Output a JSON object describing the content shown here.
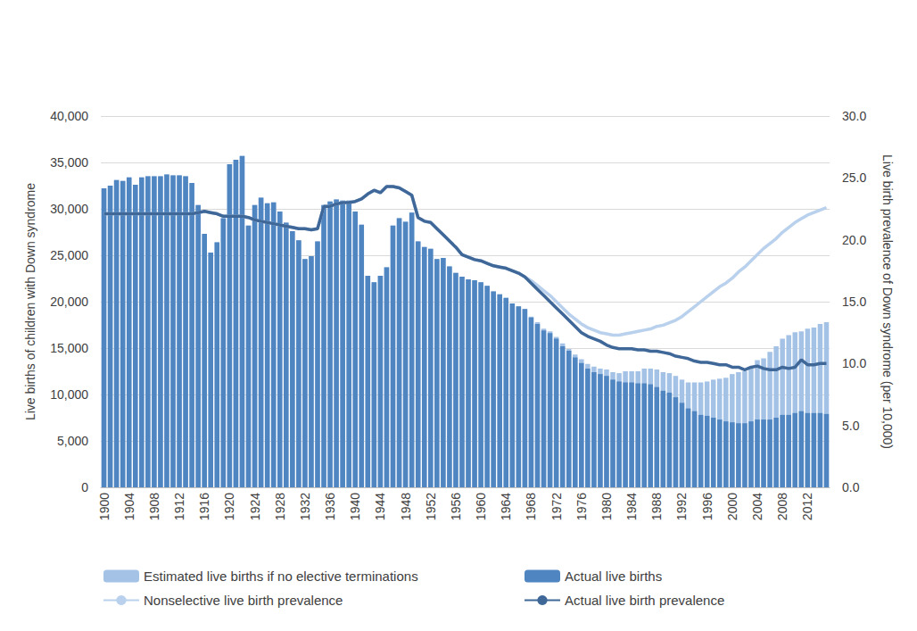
{
  "chart_data": {
    "type": "bar",
    "y_label": "Live births of children with Down syndrome",
    "y2_label": "Live birth prevalence of Down syndrome (per 10,000)",
    "categories": [
      "1900",
      null,
      null,
      null,
      "1904",
      null,
      null,
      null,
      "1908",
      null,
      null,
      null,
      "1912",
      null,
      null,
      null,
      "1916",
      null,
      null,
      null,
      "1920",
      null,
      null,
      null,
      "1924",
      null,
      null,
      null,
      "1928",
      null,
      null,
      null,
      "1932",
      null,
      null,
      null,
      "1936",
      null,
      null,
      null,
      "1940",
      null,
      null,
      null,
      "1944",
      null,
      null,
      null,
      "1948",
      null,
      null,
      null,
      "1952",
      null,
      null,
      null,
      "1956",
      null,
      null,
      null,
      "1960",
      null,
      null,
      null,
      "1964",
      null,
      null,
      null,
      "1968",
      null,
      null,
      null,
      "1972",
      null,
      null,
      null,
      "1976",
      null,
      null,
      null,
      "1980",
      null,
      null,
      null,
      "1984",
      null,
      null,
      null,
      "1988",
      null,
      null,
      null,
      "1992",
      null,
      null,
      null,
      "1996",
      null,
      null,
      null,
      "2000",
      null,
      null,
      null,
      "2004",
      null,
      null,
      null,
      "2008",
      null,
      null,
      null,
      "2012",
      null,
      null,
      null
    ],
    "ylim": [
      0,
      40000
    ],
    "yticks": [
      0,
      {
        "value": 5000,
        "label": "5,000"
      },
      {
        "value": 10000,
        "label": "10,000"
      },
      {
        "value": 15000,
        "label": "15,000"
      },
      {
        "value": 20000,
        "label": "20,000"
      },
      {
        "value": 25000,
        "label": "25,000"
      },
      {
        "value": 30000,
        "label": "30,000"
      },
      {
        "value": 35000,
        "label": "35,000"
      },
      {
        "value": 40000,
        "label": "40,000"
      }
    ],
    "y2lim": [
      0,
      30
    ],
    "y2ticks": [
      {
        "value": 0,
        "label": "0.0"
      },
      {
        "value": 5,
        "label": "5.0"
      },
      {
        "value": 10,
        "label": "10.0"
      },
      {
        "value": 15,
        "label": "15.0"
      },
      {
        "value": 20,
        "label": "20.0"
      },
      {
        "value": 25,
        "label": "25.0"
      },
      {
        "value": 30,
        "label": "30.0"
      }
    ],
    "grid": true,
    "legend": "bottom",
    "stacked": false,
    "series": [
      {
        "name": "Estimated live births if no elective terminations",
        "type": "bar",
        "color": "#a4c2e6",
        "values": [
          32200,
          32500,
          33100,
          33000,
          33400,
          32600,
          33400,
          33500,
          33500,
          33500,
          33700,
          33600,
          33600,
          33500,
          32800,
          30400,
          27300,
          25300,
          26400,
          29000,
          34800,
          35300,
          35700,
          28200,
          30400,
          31200,
          30600,
          30700,
          29700,
          28500,
          27600,
          26600,
          24600,
          24900,
          26500,
          30400,
          30800,
          31000,
          30900,
          30900,
          29700,
          28300,
          22800,
          22100,
          22800,
          23700,
          28200,
          29000,
          28600,
          29600,
          26500,
          25900,
          25700,
          24600,
          24700,
          23800,
          23100,
          22700,
          22400,
          22300,
          22100,
          21700,
          21100,
          20800,
          20400,
          19800,
          19500,
          19200,
          18400,
          17800,
          17100,
          16800,
          16200,
          15500,
          14900,
          14300,
          13800,
          13300,
          13000,
          12800,
          12700,
          12400,
          12300,
          12500,
          12500,
          12500,
          12800,
          12800,
          12700,
          12400,
          12300,
          12000,
          11600,
          11300,
          11300,
          11300,
          11400,
          11600,
          11700,
          11800,
          12200,
          12400,
          12500,
          13000,
          13700,
          13900,
          14600,
          15200,
          16000,
          16400,
          16700,
          16800,
          17100,
          17200,
          17600,
          17800
        ]
      },
      {
        "name": "Actual live births",
        "type": "bar",
        "color": "#4f85c1",
        "values": [
          32200,
          32500,
          33100,
          33000,
          33400,
          32600,
          33400,
          33500,
          33500,
          33500,
          33700,
          33600,
          33600,
          33500,
          32800,
          30400,
          27300,
          25300,
          26400,
          29000,
          34800,
          35300,
          35700,
          28200,
          30400,
          31200,
          30600,
          30700,
          29700,
          28500,
          27600,
          26600,
          24600,
          24900,
          26500,
          30400,
          30800,
          31000,
          30900,
          30900,
          29700,
          28300,
          22800,
          22100,
          22800,
          23700,
          28200,
          29000,
          28600,
          29600,
          26500,
          25900,
          25700,
          24600,
          24700,
          23800,
          23100,
          22700,
          22400,
          22300,
          22100,
          21700,
          21100,
          20800,
          20400,
          19800,
          19500,
          19200,
          18300,
          17600,
          16900,
          16600,
          16000,
          15200,
          14700,
          14000,
          13400,
          12800,
          12400,
          12200,
          12000,
          11600,
          11400,
          11300,
          11300,
          11200,
          11200,
          11100,
          10800,
          10400,
          10200,
          9700,
          9100,
          8500,
          8200,
          7800,
          7700,
          7500,
          7300,
          7100,
          7000,
          6900,
          6900,
          7100,
          7300,
          7300,
          7300,
          7500,
          7800,
          7800,
          8000,
          8200,
          8000,
          8000,
          8000,
          7900
        ]
      },
      {
        "name": "Nonselective live birth prevalence",
        "type": "line",
        "axis": "y2",
        "color": "#b9d1ec",
        "values": [
          22.1,
          22.1,
          22.1,
          22.1,
          22.1,
          22.1,
          22.1,
          22.1,
          22.1,
          22.1,
          22.1,
          22.1,
          22.1,
          22.1,
          22.1,
          22.2,
          22.3,
          22.2,
          22.1,
          21.9,
          21.9,
          21.9,
          21.9,
          21.8,
          21.6,
          21.5,
          21.4,
          21.3,
          21.2,
          21.1,
          21.0,
          20.9,
          20.9,
          20.8,
          20.9,
          22.7,
          22.7,
          22.9,
          23.0,
          23.0,
          23.1,
          23.3,
          23.7,
          24.0,
          23.8,
          24.3,
          24.3,
          24.2,
          23.9,
          23.6,
          21.8,
          21.5,
          21.4,
          20.9,
          20.4,
          19.9,
          19.4,
          18.8,
          18.6,
          18.4,
          18.3,
          18.1,
          17.9,
          17.8,
          17.7,
          17.5,
          17.3,
          17.0,
          16.7,
          16.3,
          15.9,
          15.5,
          15.0,
          14.5,
          14.0,
          13.6,
          13.2,
          12.9,
          12.7,
          12.5,
          12.4,
          12.3,
          12.3,
          12.4,
          12.5,
          12.6,
          12.7,
          12.8,
          13.0,
          13.1,
          13.3,
          13.5,
          13.8,
          14.2,
          14.6,
          15.0,
          15.4,
          15.8,
          16.2,
          16.5,
          16.9,
          17.4,
          17.8,
          18.3,
          18.8,
          19.3,
          19.7,
          20.1,
          20.6,
          21.0,
          21.4,
          21.7,
          22.0,
          22.2,
          22.4,
          22.6
        ]
      },
      {
        "name": "Actual live birth prevalence",
        "type": "line",
        "axis": "y2",
        "color": "#3f6899",
        "values": [
          22.1,
          22.1,
          22.1,
          22.1,
          22.1,
          22.1,
          22.1,
          22.1,
          22.1,
          22.1,
          22.1,
          22.1,
          22.1,
          22.1,
          22.1,
          22.2,
          22.3,
          22.2,
          22.1,
          21.9,
          21.9,
          21.9,
          21.9,
          21.8,
          21.6,
          21.5,
          21.4,
          21.3,
          21.2,
          21.1,
          21.0,
          20.9,
          20.9,
          20.8,
          20.9,
          22.7,
          22.7,
          22.9,
          23.0,
          23.0,
          23.1,
          23.3,
          23.7,
          24.0,
          23.8,
          24.3,
          24.3,
          24.2,
          23.9,
          23.6,
          21.8,
          21.5,
          21.4,
          20.9,
          20.4,
          19.9,
          19.4,
          18.8,
          18.6,
          18.4,
          18.3,
          18.1,
          17.9,
          17.8,
          17.7,
          17.5,
          17.3,
          17.0,
          16.5,
          16.0,
          15.5,
          15.0,
          14.5,
          14.0,
          13.5,
          13.0,
          12.5,
          12.2,
          12.0,
          11.8,
          11.5,
          11.3,
          11.2,
          11.2,
          11.2,
          11.1,
          11.1,
          11.0,
          11.0,
          10.9,
          10.8,
          10.6,
          10.5,
          10.4,
          10.2,
          10.1,
          10.1,
          10.0,
          9.9,
          9.9,
          9.7,
          9.7,
          9.5,
          9.7,
          9.8,
          9.6,
          9.5,
          9.5,
          9.7,
          9.6,
          9.7,
          10.3,
          9.9,
          9.9,
          10.0,
          10.0
        ]
      }
    ]
  }
}
